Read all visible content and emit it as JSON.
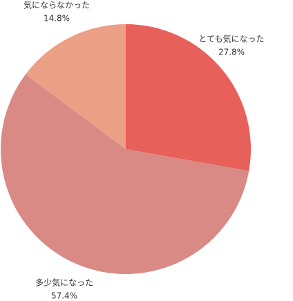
{
  "chart_data": {
    "type": "pie",
    "categories": [
      "とても気になった",
      "多少気になった",
      "気にならなかった"
    ],
    "values": [
      27.8,
      57.4,
      14.8
    ],
    "value_labels": [
      "27.8%",
      "57.4%",
      "14.8%"
    ],
    "colors": [
      "#e8605a",
      "#d98a85",
      "#eba085"
    ]
  }
}
